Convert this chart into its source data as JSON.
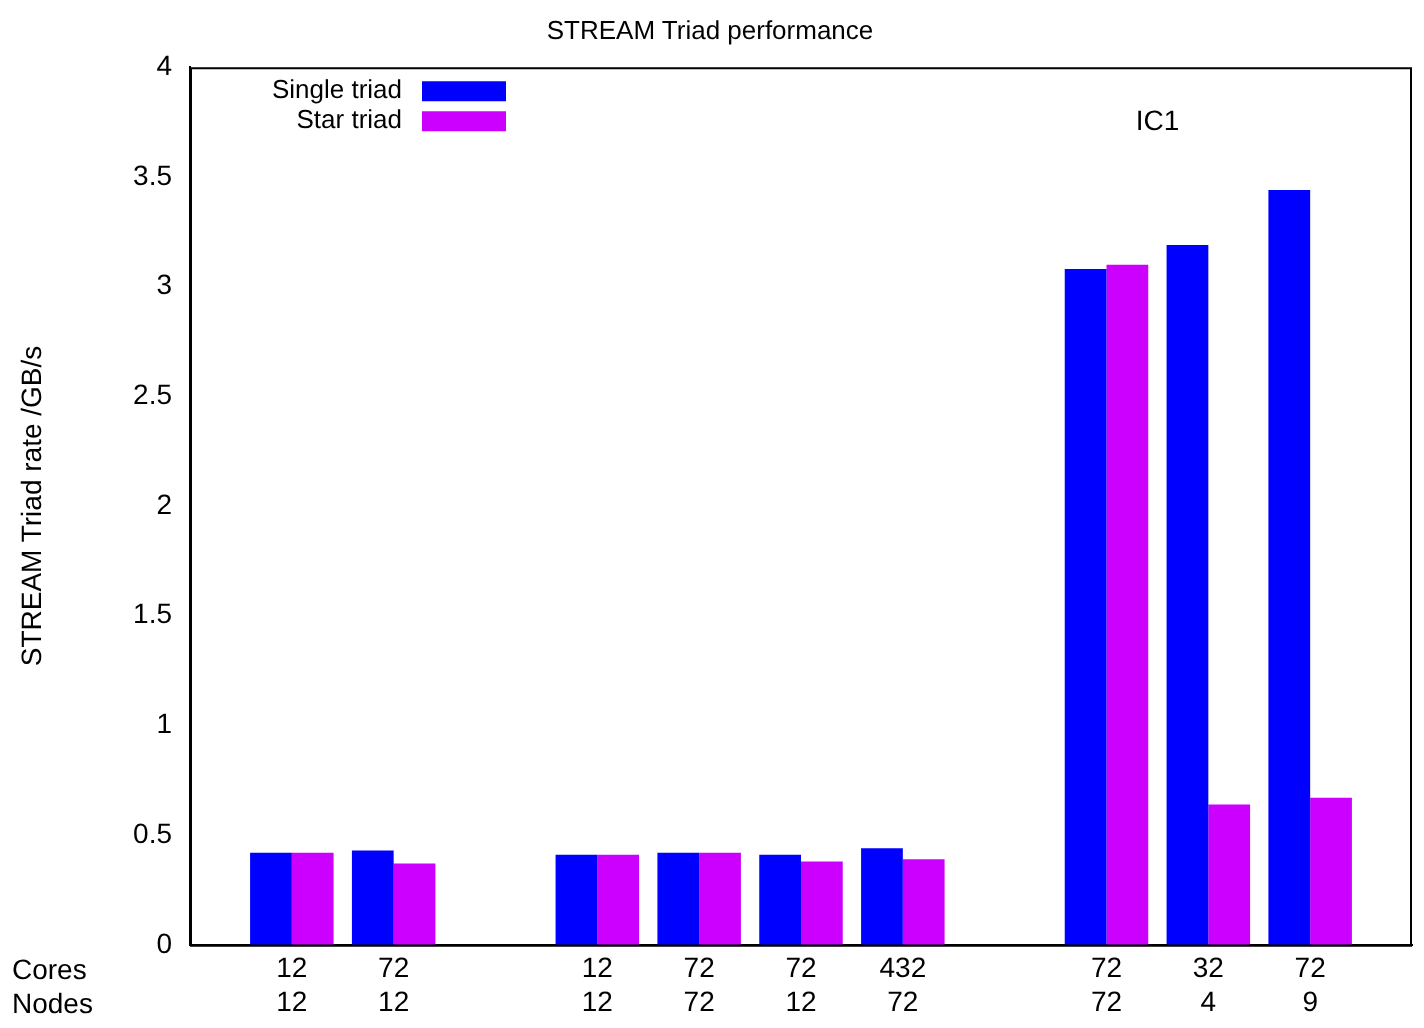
{
  "chart_data": {
    "type": "bar",
    "title": "STREAM Triad performance",
    "ylabel": "STREAM Triad rate /GB/s",
    "categories": [
      null,
      "12\n12",
      "72\n12",
      null,
      "12\n12",
      "72\n72",
      "72\n12",
      "432\n72",
      null,
      "72\n72",
      "32\n4",
      "72\n9",
      null
    ],
    "series": [
      {
        "name": "Single triad",
        "color": "#0000ff",
        "values": [
          null,
          0.42,
          0.43,
          null,
          0.41,
          0.42,
          0.41,
          0.44,
          null,
          3.08,
          3.19,
          3.44,
          null
        ]
      },
      {
        "name": "Star triad",
        "color": "#cc00ff",
        "values": [
          null,
          0.42,
          0.37,
          null,
          0.41,
          0.42,
          0.38,
          0.39,
          null,
          3.1,
          0.64,
          0.67,
          null
        ]
      }
    ],
    "annotations": [
      "Cores",
      "Nodes",
      "IC1"
    ],
    "ylim": [
      0,
      4
    ],
    "yticks": [
      0,
      0.5,
      1,
      1.5,
      2,
      2.5,
      3,
      3.5,
      4
    ],
    "grid": false,
    "legend": "top left"
  }
}
